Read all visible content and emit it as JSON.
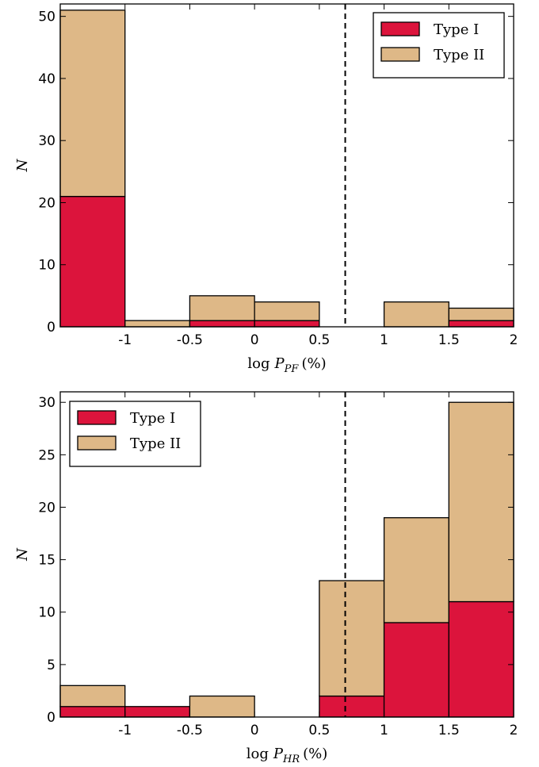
{
  "chart_data": [
    {
      "type": "bar",
      "stacked": true,
      "bin_edges": [
        -1.5,
        -1,
        -0.5,
        0,
        0.5,
        1,
        1.5,
        2
      ],
      "x_tick_values": [
        -1,
        -0.5,
        0,
        0.5,
        1,
        1.5,
        2
      ],
      "x_tick_labels": [
        "-1",
        "-0.5",
        "0",
        "0.5",
        "1",
        "1.5",
        "2"
      ],
      "y_tick_values": [
        0,
        10,
        20,
        30,
        40,
        50
      ],
      "xlim": [
        -1.5,
        2
      ],
      "ylim": [
        0,
        52
      ],
      "xlabel_base": "log",
      "xlabel_var": "P",
      "xlabel_sub": "PF",
      "xlabel_unit": "(%)",
      "ylabel": "N",
      "threshold_x": 0.7,
      "legend_position": "top-right",
      "series": [
        {
          "name": "Type I",
          "color": "#DC143C",
          "values": [
            21,
            0,
            1,
            1,
            0,
            0,
            1
          ]
        },
        {
          "name": "Type II",
          "color": "#DEB887",
          "values": [
            30,
            1,
            4,
            3,
            0,
            4,
            2
          ]
        }
      ]
    },
    {
      "type": "bar",
      "stacked": true,
      "bin_edges": [
        -1.5,
        -1,
        -0.5,
        0,
        0.5,
        1,
        1.5,
        2
      ],
      "x_tick_values": [
        -1,
        -0.5,
        0,
        0.5,
        1,
        1.5,
        2
      ],
      "x_tick_labels": [
        "-1",
        "-0.5",
        "0",
        "0.5",
        "1",
        "1.5",
        "2"
      ],
      "y_tick_values": [
        0,
        5,
        10,
        15,
        20,
        25,
        30
      ],
      "xlim": [
        -1.5,
        2
      ],
      "ylim": [
        0,
        31
      ],
      "xlabel_base": "log",
      "xlabel_var": "P",
      "xlabel_sub": "HR",
      "xlabel_unit": "(%)",
      "ylabel": "N",
      "threshold_x": 0.7,
      "legend_position": "top-left",
      "series": [
        {
          "name": "Type I",
          "color": "#DC143C",
          "values": [
            1,
            1,
            0,
            0,
            2,
            9,
            11
          ]
        },
        {
          "name": "Type II",
          "color": "#DEB887",
          "values": [
            2,
            0,
            2,
            0,
            11,
            10,
            19
          ]
        }
      ]
    }
  ]
}
